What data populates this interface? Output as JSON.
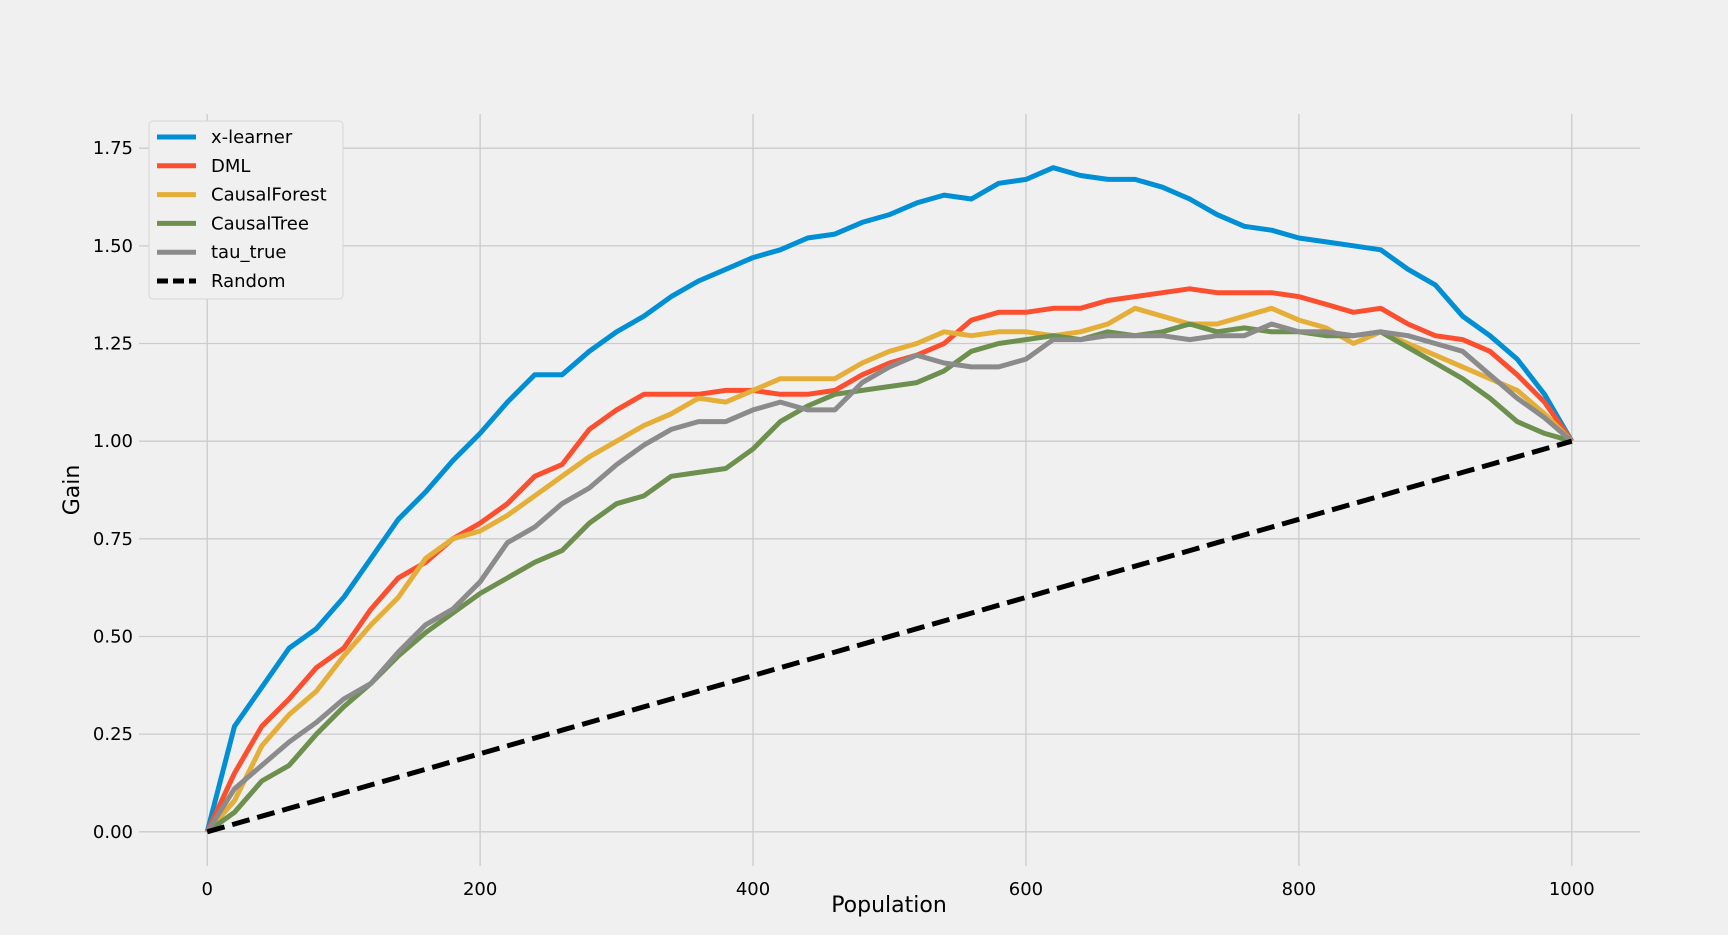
{
  "chart_data": {
    "type": "line",
    "xlabel": "Population",
    "ylabel": "Gain",
    "xlim": [
      -50,
      1050
    ],
    "ylim": [
      -0.0875,
      1.8375
    ],
    "xticks": [
      0,
      200,
      400,
      600,
      800,
      1000
    ],
    "yticks": [
      0.0,
      0.25,
      0.5,
      0.75,
      1.0,
      1.25,
      1.5,
      1.75
    ],
    "xtick_labels": [
      "0",
      "200",
      "400",
      "600",
      "800",
      "1000"
    ],
    "ytick_labels": [
      "0.00",
      "0.25",
      "0.50",
      "0.75",
      "1.00",
      "1.25",
      "1.50",
      "1.75"
    ],
    "grid": true,
    "legend_position": "top-left",
    "x": [
      0,
      20,
      40,
      60,
      80,
      100,
      120,
      140,
      160,
      180,
      200,
      220,
      240,
      260,
      280,
      300,
      320,
      340,
      360,
      380,
      400,
      420,
      440,
      460,
      480,
      500,
      520,
      540,
      560,
      580,
      600,
      620,
      640,
      660,
      680,
      700,
      720,
      740,
      760,
      780,
      800,
      820,
      840,
      860,
      880,
      900,
      920,
      940,
      960,
      980,
      1000
    ],
    "series": [
      {
        "name": "x-learner",
        "color": "#008fd5",
        "dashed": false,
        "values": [
          0.0,
          0.27,
          0.37,
          0.47,
          0.52,
          0.6,
          0.7,
          0.8,
          0.87,
          0.95,
          1.02,
          1.1,
          1.17,
          1.17,
          1.23,
          1.28,
          1.32,
          1.37,
          1.41,
          1.44,
          1.47,
          1.49,
          1.52,
          1.53,
          1.56,
          1.58,
          1.61,
          1.63,
          1.62,
          1.66,
          1.67,
          1.7,
          1.68,
          1.67,
          1.67,
          1.65,
          1.62,
          1.58,
          1.55,
          1.54,
          1.52,
          1.51,
          1.5,
          1.49,
          1.44,
          1.4,
          1.32,
          1.27,
          1.21,
          1.12,
          1.0
        ]
      },
      {
        "name": "DML",
        "color": "#fc4f30",
        "dashed": false,
        "values": [
          0.0,
          0.15,
          0.27,
          0.34,
          0.42,
          0.47,
          0.57,
          0.65,
          0.69,
          0.75,
          0.79,
          0.84,
          0.91,
          0.94,
          1.03,
          1.08,
          1.12,
          1.12,
          1.12,
          1.13,
          1.13,
          1.12,
          1.12,
          1.13,
          1.17,
          1.2,
          1.22,
          1.25,
          1.31,
          1.33,
          1.33,
          1.34,
          1.34,
          1.36,
          1.37,
          1.38,
          1.39,
          1.38,
          1.38,
          1.38,
          1.37,
          1.35,
          1.33,
          1.34,
          1.3,
          1.27,
          1.26,
          1.23,
          1.17,
          1.1,
          1.0
        ]
      },
      {
        "name": "CausalForest",
        "color": "#e5ae38",
        "dashed": false,
        "values": [
          0.0,
          0.08,
          0.22,
          0.3,
          0.36,
          0.45,
          0.53,
          0.6,
          0.7,
          0.75,
          0.77,
          0.81,
          0.86,
          0.91,
          0.96,
          1.0,
          1.04,
          1.07,
          1.11,
          1.1,
          1.13,
          1.16,
          1.16,
          1.16,
          1.2,
          1.23,
          1.25,
          1.28,
          1.27,
          1.28,
          1.28,
          1.27,
          1.28,
          1.3,
          1.34,
          1.32,
          1.3,
          1.3,
          1.32,
          1.34,
          1.31,
          1.29,
          1.25,
          1.28,
          1.25,
          1.22,
          1.19,
          1.16,
          1.13,
          1.07,
          1.0
        ]
      },
      {
        "name": "CausalTree",
        "color": "#6d904f",
        "dashed": false,
        "values": [
          0.0,
          0.05,
          0.13,
          0.17,
          0.25,
          0.32,
          0.38,
          0.45,
          0.51,
          0.56,
          0.61,
          0.65,
          0.69,
          0.72,
          0.79,
          0.84,
          0.86,
          0.91,
          0.92,
          0.93,
          0.98,
          1.05,
          1.09,
          1.12,
          1.13,
          1.14,
          1.15,
          1.18,
          1.23,
          1.25,
          1.26,
          1.27,
          1.26,
          1.28,
          1.27,
          1.28,
          1.3,
          1.28,
          1.29,
          1.28,
          1.28,
          1.27,
          1.27,
          1.28,
          1.24,
          1.2,
          1.16,
          1.11,
          1.05,
          1.02,
          1.0
        ]
      },
      {
        "name": "tau_true",
        "color": "#8b8b8b",
        "dashed": false,
        "values": [
          0.0,
          0.11,
          0.17,
          0.23,
          0.28,
          0.34,
          0.38,
          0.46,
          0.53,
          0.57,
          0.64,
          0.74,
          0.78,
          0.84,
          0.88,
          0.94,
          0.99,
          1.03,
          1.05,
          1.05,
          1.08,
          1.1,
          1.08,
          1.08,
          1.15,
          1.19,
          1.22,
          1.2,
          1.19,
          1.19,
          1.21,
          1.26,
          1.26,
          1.27,
          1.27,
          1.27,
          1.26,
          1.27,
          1.27,
          1.3,
          1.28,
          1.28,
          1.27,
          1.28,
          1.27,
          1.25,
          1.23,
          1.17,
          1.11,
          1.06,
          1.0
        ]
      },
      {
        "name": "Random",
        "color": "#000000",
        "dashed": true,
        "values": [
          0.0,
          0.02,
          0.04,
          0.06,
          0.08,
          0.1,
          0.12,
          0.14,
          0.16,
          0.18,
          0.2,
          0.22,
          0.24,
          0.26,
          0.28,
          0.3,
          0.32,
          0.34,
          0.36,
          0.38,
          0.4,
          0.42,
          0.44,
          0.46,
          0.48,
          0.5,
          0.52,
          0.54,
          0.56,
          0.58,
          0.6,
          0.62,
          0.64,
          0.66,
          0.68,
          0.7,
          0.72,
          0.74,
          0.76,
          0.78,
          0.8,
          0.82,
          0.84,
          0.86,
          0.88,
          0.9,
          0.92,
          0.94,
          0.96,
          0.98,
          1.0
        ]
      }
    ]
  }
}
